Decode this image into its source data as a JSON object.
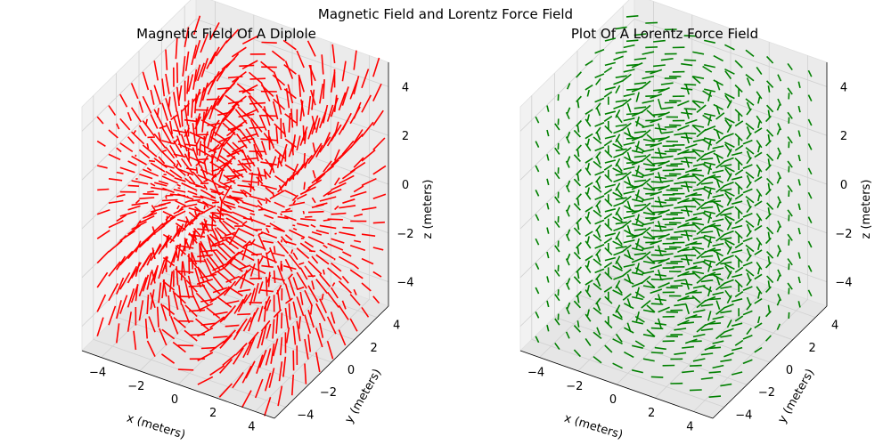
{
  "figure": {
    "suptitle": "Magnetic Field and Lorentz Force Field"
  },
  "chart_data": [
    {
      "type": "quiver3d",
      "title": "Magnetic Field Of A Diplole",
      "xlabel": "x (meters)",
      "ylabel": "y (meters)",
      "zlabel": "z (meters)",
      "xlim": [
        -5,
        5
      ],
      "ylim": [
        -5,
        5
      ],
      "zlim": [
        -5,
        5
      ],
      "xticks": [
        -4,
        -2,
        0,
        2,
        4
      ],
      "yticks": [
        -4,
        -2,
        0,
        2,
        4
      ],
      "zticks": [
        -4,
        -2,
        0,
        2,
        4
      ],
      "xtick_labels": [
        "−4",
        "−2",
        "0",
        "2",
        "4"
      ],
      "ytick_labels": [
        "−4",
        "−2",
        "0",
        "2",
        "4"
      ],
      "ztick_labels": [
        "−4",
        "−2",
        "0",
        "2",
        "4"
      ],
      "grid": [
        -4.5,
        -3.5,
        -2.5,
        -1.5,
        -0.5,
        0.5,
        1.5,
        2.5,
        3.5,
        4.5
      ],
      "field": "dipole",
      "color": "#ff0000",
      "grid_on": true
    },
    {
      "type": "quiver3d",
      "title": "Plot Of A Lorentz Force Field",
      "xlabel": "x (meters)",
      "ylabel": "y (meters)",
      "zlabel": "z (meters)",
      "xlim": [
        -5,
        5
      ],
      "ylim": [
        -5,
        5
      ],
      "zlim": [
        -5,
        5
      ],
      "xticks": [
        -4,
        -2,
        0,
        2,
        4
      ],
      "yticks": [
        -4,
        -2,
        0,
        2,
        4
      ],
      "zticks": [
        -4,
        -2,
        0,
        2,
        4
      ],
      "xtick_labels": [
        "−4",
        "−2",
        "0",
        "2",
        "4"
      ],
      "ytick_labels": [
        "−4",
        "−2",
        "0",
        "2",
        "4"
      ],
      "ztick_labels": [
        "−4",
        "−2",
        "0",
        "2",
        "4"
      ],
      "grid": [
        -4.5,
        -3.5,
        -2.5,
        -1.5,
        -0.5,
        0.5,
        1.5,
        2.5,
        3.5,
        4.5
      ],
      "field": "lorentz",
      "color": "#008000",
      "grid_on": true
    }
  ]
}
